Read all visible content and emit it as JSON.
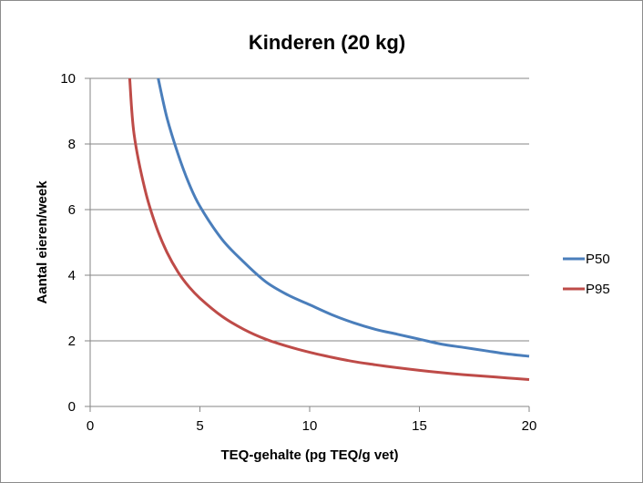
{
  "chart_data": {
    "type": "line",
    "title": "Kinderen (20 kg)",
    "xlabel": "TEQ-gehalte (pg TEQ/g vet)",
    "ylabel": "Aantal eieren/week",
    "xlim": [
      0,
      20
    ],
    "ylim": [
      0,
      10
    ],
    "xticks": [
      0,
      5,
      10,
      15,
      20
    ],
    "yticks": [
      0,
      2,
      4,
      6,
      8,
      10
    ],
    "grid": "horizontal",
    "legend_position": "right",
    "series": [
      {
        "name": "P50",
        "color": "#4a7ebb",
        "x": [
          3.1,
          3.5,
          4,
          4.5,
          5,
          6,
          7,
          8,
          9,
          10,
          11,
          12,
          13,
          14,
          15,
          16,
          17,
          18,
          19,
          20
        ],
        "y": [
          10,
          8.8,
          7.7,
          6.8,
          6.1,
          5.1,
          4.4,
          3.8,
          3.4,
          3.1,
          2.8,
          2.55,
          2.35,
          2.2,
          2.05,
          1.9,
          1.8,
          1.7,
          1.6,
          1.53
        ]
      },
      {
        "name": "P95",
        "color": "#be4b48",
        "x": [
          1.8,
          2,
          2.5,
          3,
          3.5,
          4,
          4.5,
          5,
          6,
          7,
          8,
          9,
          10,
          11,
          12,
          13,
          14,
          15,
          16,
          17,
          18,
          19,
          20
        ],
        "y": [
          10,
          8.3,
          6.6,
          5.5,
          4.7,
          4.1,
          3.65,
          3.3,
          2.75,
          2.35,
          2.05,
          1.83,
          1.65,
          1.5,
          1.37,
          1.27,
          1.18,
          1.1,
          1.03,
          0.97,
          0.92,
          0.87,
          0.82
        ]
      }
    ]
  }
}
